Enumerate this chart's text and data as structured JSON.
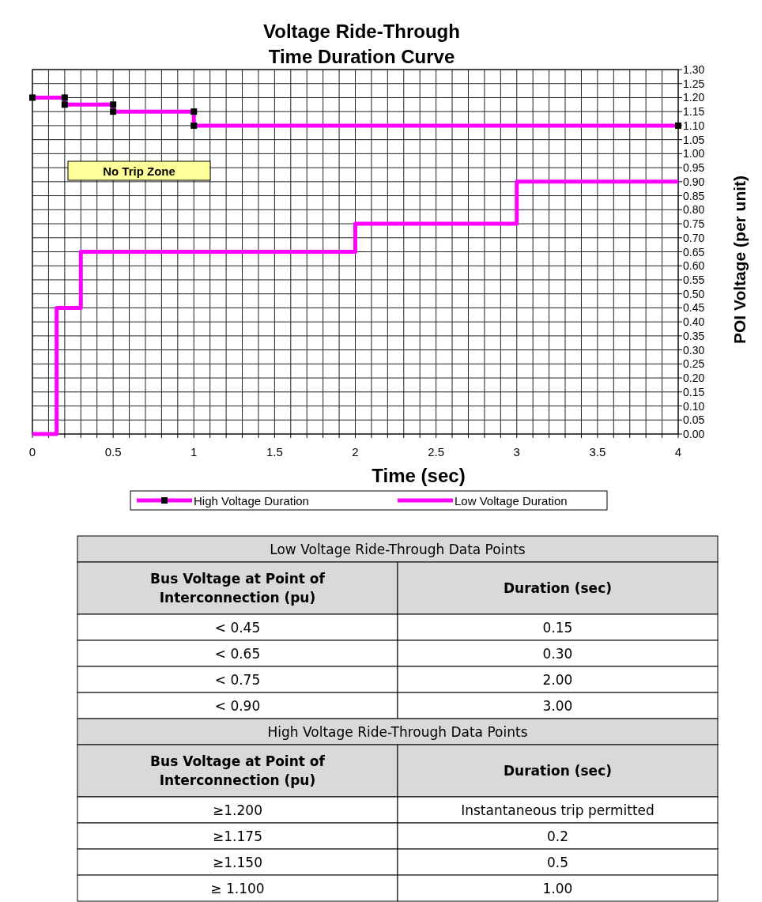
{
  "chart_data": [
    {
      "type": "line",
      "title": "Voltage Ride-Through\nTime Duration Curve",
      "xlabel": "Time (sec)",
      "ylabel": "POI Voltage (per unit)",
      "xlim": [
        0,
        4
      ],
      "ylim": [
        0,
        1.3
      ],
      "xticks": [
        0,
        {
          "value": 0.1,
          "label": null
        },
        {
          "value": 0.2,
          "label": null
        },
        {
          "value": 0.3,
          "label": null
        },
        {
          "value": 0.4,
          "label": null
        },
        0.5,
        {
          "value": 0.6,
          "label": null
        },
        {
          "value": 0.7,
          "label": null
        },
        {
          "value": 0.8,
          "label": null
        },
        {
          "value": 0.9,
          "label": null
        },
        1,
        {
          "value": 1.1,
          "label": null
        },
        {
          "value": 1.2,
          "label": null
        },
        {
          "value": 1.3,
          "label": null
        },
        {
          "value": 1.4,
          "label": null
        },
        1.5,
        {
          "value": 1.6,
          "label": null
        },
        {
          "value": 1.7,
          "label": null
        },
        {
          "value": 1.8,
          "label": null
        },
        {
          "value": 1.9,
          "label": null
        },
        2,
        {
          "value": 2.1,
          "label": null
        },
        {
          "value": 2.2,
          "label": null
        },
        {
          "value": 2.3,
          "label": null
        },
        {
          "value": 2.4,
          "label": null
        },
        2.5,
        {
          "value": 2.6,
          "label": null
        },
        {
          "value": 2.7,
          "label": null
        },
        {
          "value": 2.8,
          "label": null
        },
        {
          "value": 2.9,
          "label": null
        },
        3,
        {
          "value": 3.1,
          "label": null
        },
        {
          "value": 3.2,
          "label": null
        },
        {
          "value": 3.3,
          "label": null
        },
        {
          "value": 3.4,
          "label": null
        },
        3.5,
        {
          "value": 3.6,
          "label": null
        },
        {
          "value": 3.7,
          "label": null
        },
        {
          "value": 3.8,
          "label": null
        },
        {
          "value": 3.9,
          "label": null
        },
        4
      ],
      "yticks": [
        {
          "value": 0,
          "label": "0.00"
        },
        {
          "value": 0.05,
          "label": "0.05"
        },
        {
          "value": 0.1,
          "label": "0.10"
        },
        {
          "value": 0.15,
          "label": "0.15"
        },
        {
          "value": 0.2,
          "label": "0.20"
        },
        {
          "value": 0.25,
          "label": "0.25"
        },
        {
          "value": 0.3,
          "label": "0.30"
        },
        {
          "value": 0.35,
          "label": "0.35"
        },
        {
          "value": 0.4,
          "label": "0.40"
        },
        {
          "value": 0.45,
          "label": "0.45"
        },
        {
          "value": 0.5,
          "label": "0.50"
        },
        {
          "value": 0.55,
          "label": "0.55"
        },
        {
          "value": 0.6,
          "label": "0.60"
        },
        {
          "value": 0.65,
          "label": "0.65"
        },
        {
          "value": 0.7,
          "label": "0.70"
        },
        {
          "value": 0.75,
          "label": "0.75"
        },
        {
          "value": 0.8,
          "label": "0.80"
        },
        {
          "value": 0.85,
          "label": "0.85"
        },
        {
          "value": 0.9,
          "label": "0.90"
        },
        {
          "value": 0.95,
          "label": "0.95"
        },
        {
          "value": 1,
          "label": "1.00"
        },
        {
          "value": 1.05,
          "label": "1.05"
        },
        {
          "value": 1.1,
          "label": "1.10"
        },
        {
          "value": 1.15,
          "label": "1.15"
        },
        {
          "value": 1.2,
          "label": "1.20"
        },
        {
          "value": 1.25,
          "label": "1.25"
        },
        {
          "value": 1.3,
          "label": "1.30"
        }
      ],
      "grid": true,
      "legend": "bottom",
      "annotations": [
        "No Trip Zone"
      ],
      "series": [
        {
          "name": "High Voltage Duration",
          "color": "#ff00ff",
          "marker": "square",
          "x": [
            0,
            0.2,
            0.2,
            0.5,
            0.5,
            1,
            1,
            4
          ],
          "values": [
            1.2,
            1.2,
            1.175,
            1.175,
            1.15,
            1.15,
            1.1,
            1.1
          ]
        },
        {
          "name": "Low Voltage Duration",
          "color": "#ff00ff",
          "marker": "none",
          "x": [
            0,
            0.15,
            0.15,
            0.3,
            0.3,
            2,
            2,
            3,
            3,
            4
          ],
          "values": [
            0,
            0,
            0.45,
            0.45,
            0.65,
            0.65,
            0.75,
            0.75,
            0.9,
            0.9
          ]
        }
      ]
    },
    {
      "type": "other",
      "title": "Low Voltage Ride-Through Data Points",
      "annotations": [
        "Bus Voltage at Point of Interconnection (pu)",
        "Duration (sec)",
        "< 0.45",
        "0.15",
        "< 0.65",
        "0.30",
        "< 0.75",
        "2.00",
        "< 0.90",
        "3.00"
      ]
    },
    {
      "type": "other",
      "title": "High Voltage Ride-Through Data Points",
      "annotations": [
        "Bus Voltage at Point of Interconnection (pu)",
        "Duration (sec)",
        "≥1.200",
        "Instantaneous trip permitted",
        "≥1.175",
        "0.2",
        "≥1.150",
        "0.5",
        "≥ 1.100",
        "1.00"
      ]
    }
  ]
}
